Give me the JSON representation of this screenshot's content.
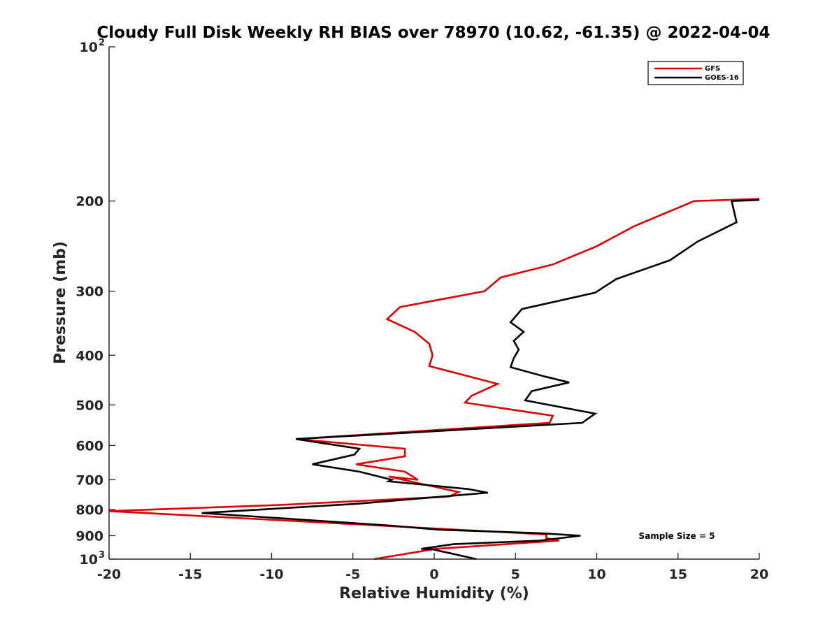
{
  "chart_data": {
    "type": "line",
    "title": "Cloudy Full Disk Weekly RH BIAS over 78970 (10.62, -61.35) @ 2022-04-04",
    "xlabel": "Relative Humidity (%)",
    "ylabel": "Pressure (mb)",
    "xlim": [
      -20,
      20
    ],
    "ylim": [
      100,
      1000
    ],
    "yscale": "log",
    "y_reversed": true,
    "grid": false,
    "legend_position": "top-right",
    "x_ticks": [
      -20,
      -15,
      -10,
      -5,
      0,
      5,
      10,
      15,
      20
    ],
    "y_ticks": [
      {
        "value": 100,
        "label": "10",
        "sup": "2"
      },
      {
        "value": 200,
        "label": "200",
        "sup": ""
      },
      {
        "value": 300,
        "label": "300",
        "sup": ""
      },
      {
        "value": 400,
        "label": "400",
        "sup": ""
      },
      {
        "value": 500,
        "label": "500",
        "sup": ""
      },
      {
        "value": 600,
        "label": "600",
        "sup": ""
      },
      {
        "value": 700,
        "label": "700",
        "sup": ""
      },
      {
        "value": 800,
        "label": "800",
        "sup": ""
      },
      {
        "value": 900,
        "label": "900",
        "sup": ""
      },
      {
        "value": 1000,
        "label": "10",
        "sup": "3"
      }
    ],
    "series": [
      {
        "name": "GFS",
        "color": "#dd0000",
        "points": [
          [
            20.0,
            198
          ],
          [
            16.0,
            200
          ],
          [
            12.3,
            224
          ],
          [
            10.0,
            245
          ],
          [
            7.3,
            266
          ],
          [
            4.1,
            282
          ],
          [
            3.1,
            300
          ],
          [
            -2.1,
            322
          ],
          [
            -2.9,
            340
          ],
          [
            -1.2,
            360
          ],
          [
            -0.3,
            380
          ],
          [
            -0.1,
            400
          ],
          [
            -0.3,
            420
          ],
          [
            3.9,
            455
          ],
          [
            2.3,
            480
          ],
          [
            1.9,
            495
          ],
          [
            7.3,
            525
          ],
          [
            7.1,
            542
          ],
          [
            -8.5,
            583
          ],
          [
            -1.8,
            609
          ],
          [
            -1.8,
            630
          ],
          [
            -4.8,
            653
          ],
          [
            -1.8,
            675
          ],
          [
            -1.0,
            700
          ],
          [
            -2.8,
            690
          ],
          [
            1.5,
            740
          ],
          [
            0.9,
            755
          ],
          [
            -9.5,
            784
          ],
          [
            -20.0,
            806
          ],
          [
            6.9,
            895
          ],
          [
            6.9,
            910
          ],
          [
            7.7,
            920
          ],
          [
            0.1,
            955
          ],
          [
            -3.7,
            1000
          ]
        ]
      },
      {
        "name": "GOES-16",
        "color": "#000000",
        "points": [
          [
            20.0,
            199
          ],
          [
            18.3,
            200
          ],
          [
            18.6,
            220
          ],
          [
            16.2,
            240
          ],
          [
            14.5,
            261
          ],
          [
            11.2,
            284
          ],
          [
            9.9,
            302
          ],
          [
            5.4,
            325
          ],
          [
            4.7,
            345
          ],
          [
            5.5,
            360
          ],
          [
            4.9,
            375
          ],
          [
            5.2,
            390
          ],
          [
            4.9,
            405
          ],
          [
            4.7,
            422
          ],
          [
            6.8,
            440
          ],
          [
            8.3,
            452
          ],
          [
            6.0,
            470
          ],
          [
            5.6,
            490
          ],
          [
            9.9,
            520
          ],
          [
            9.1,
            542
          ],
          [
            -8.5,
            583
          ],
          [
            -4.6,
            609
          ],
          [
            -4.9,
            625
          ],
          [
            -7.5,
            653
          ],
          [
            -4.6,
            675
          ],
          [
            -2.6,
            700
          ],
          [
            -2.8,
            705
          ],
          [
            2.1,
            730
          ],
          [
            3.3,
            742
          ],
          [
            -4.8,
            780
          ],
          [
            -14.3,
            813
          ],
          [
            -7.5,
            840
          ],
          [
            -2.7,
            860
          ],
          [
            0.3,
            876
          ],
          [
            6.5,
            890
          ],
          [
            9.0,
            900
          ],
          [
            6.5,
            920
          ],
          [
            1.2,
            935
          ],
          [
            -0.8,
            955
          ],
          [
            -0.1,
            957
          ],
          [
            2.6,
            1000
          ]
        ]
      }
    ],
    "annotations": [
      {
        "text": "Sample Size = 5"
      }
    ]
  }
}
